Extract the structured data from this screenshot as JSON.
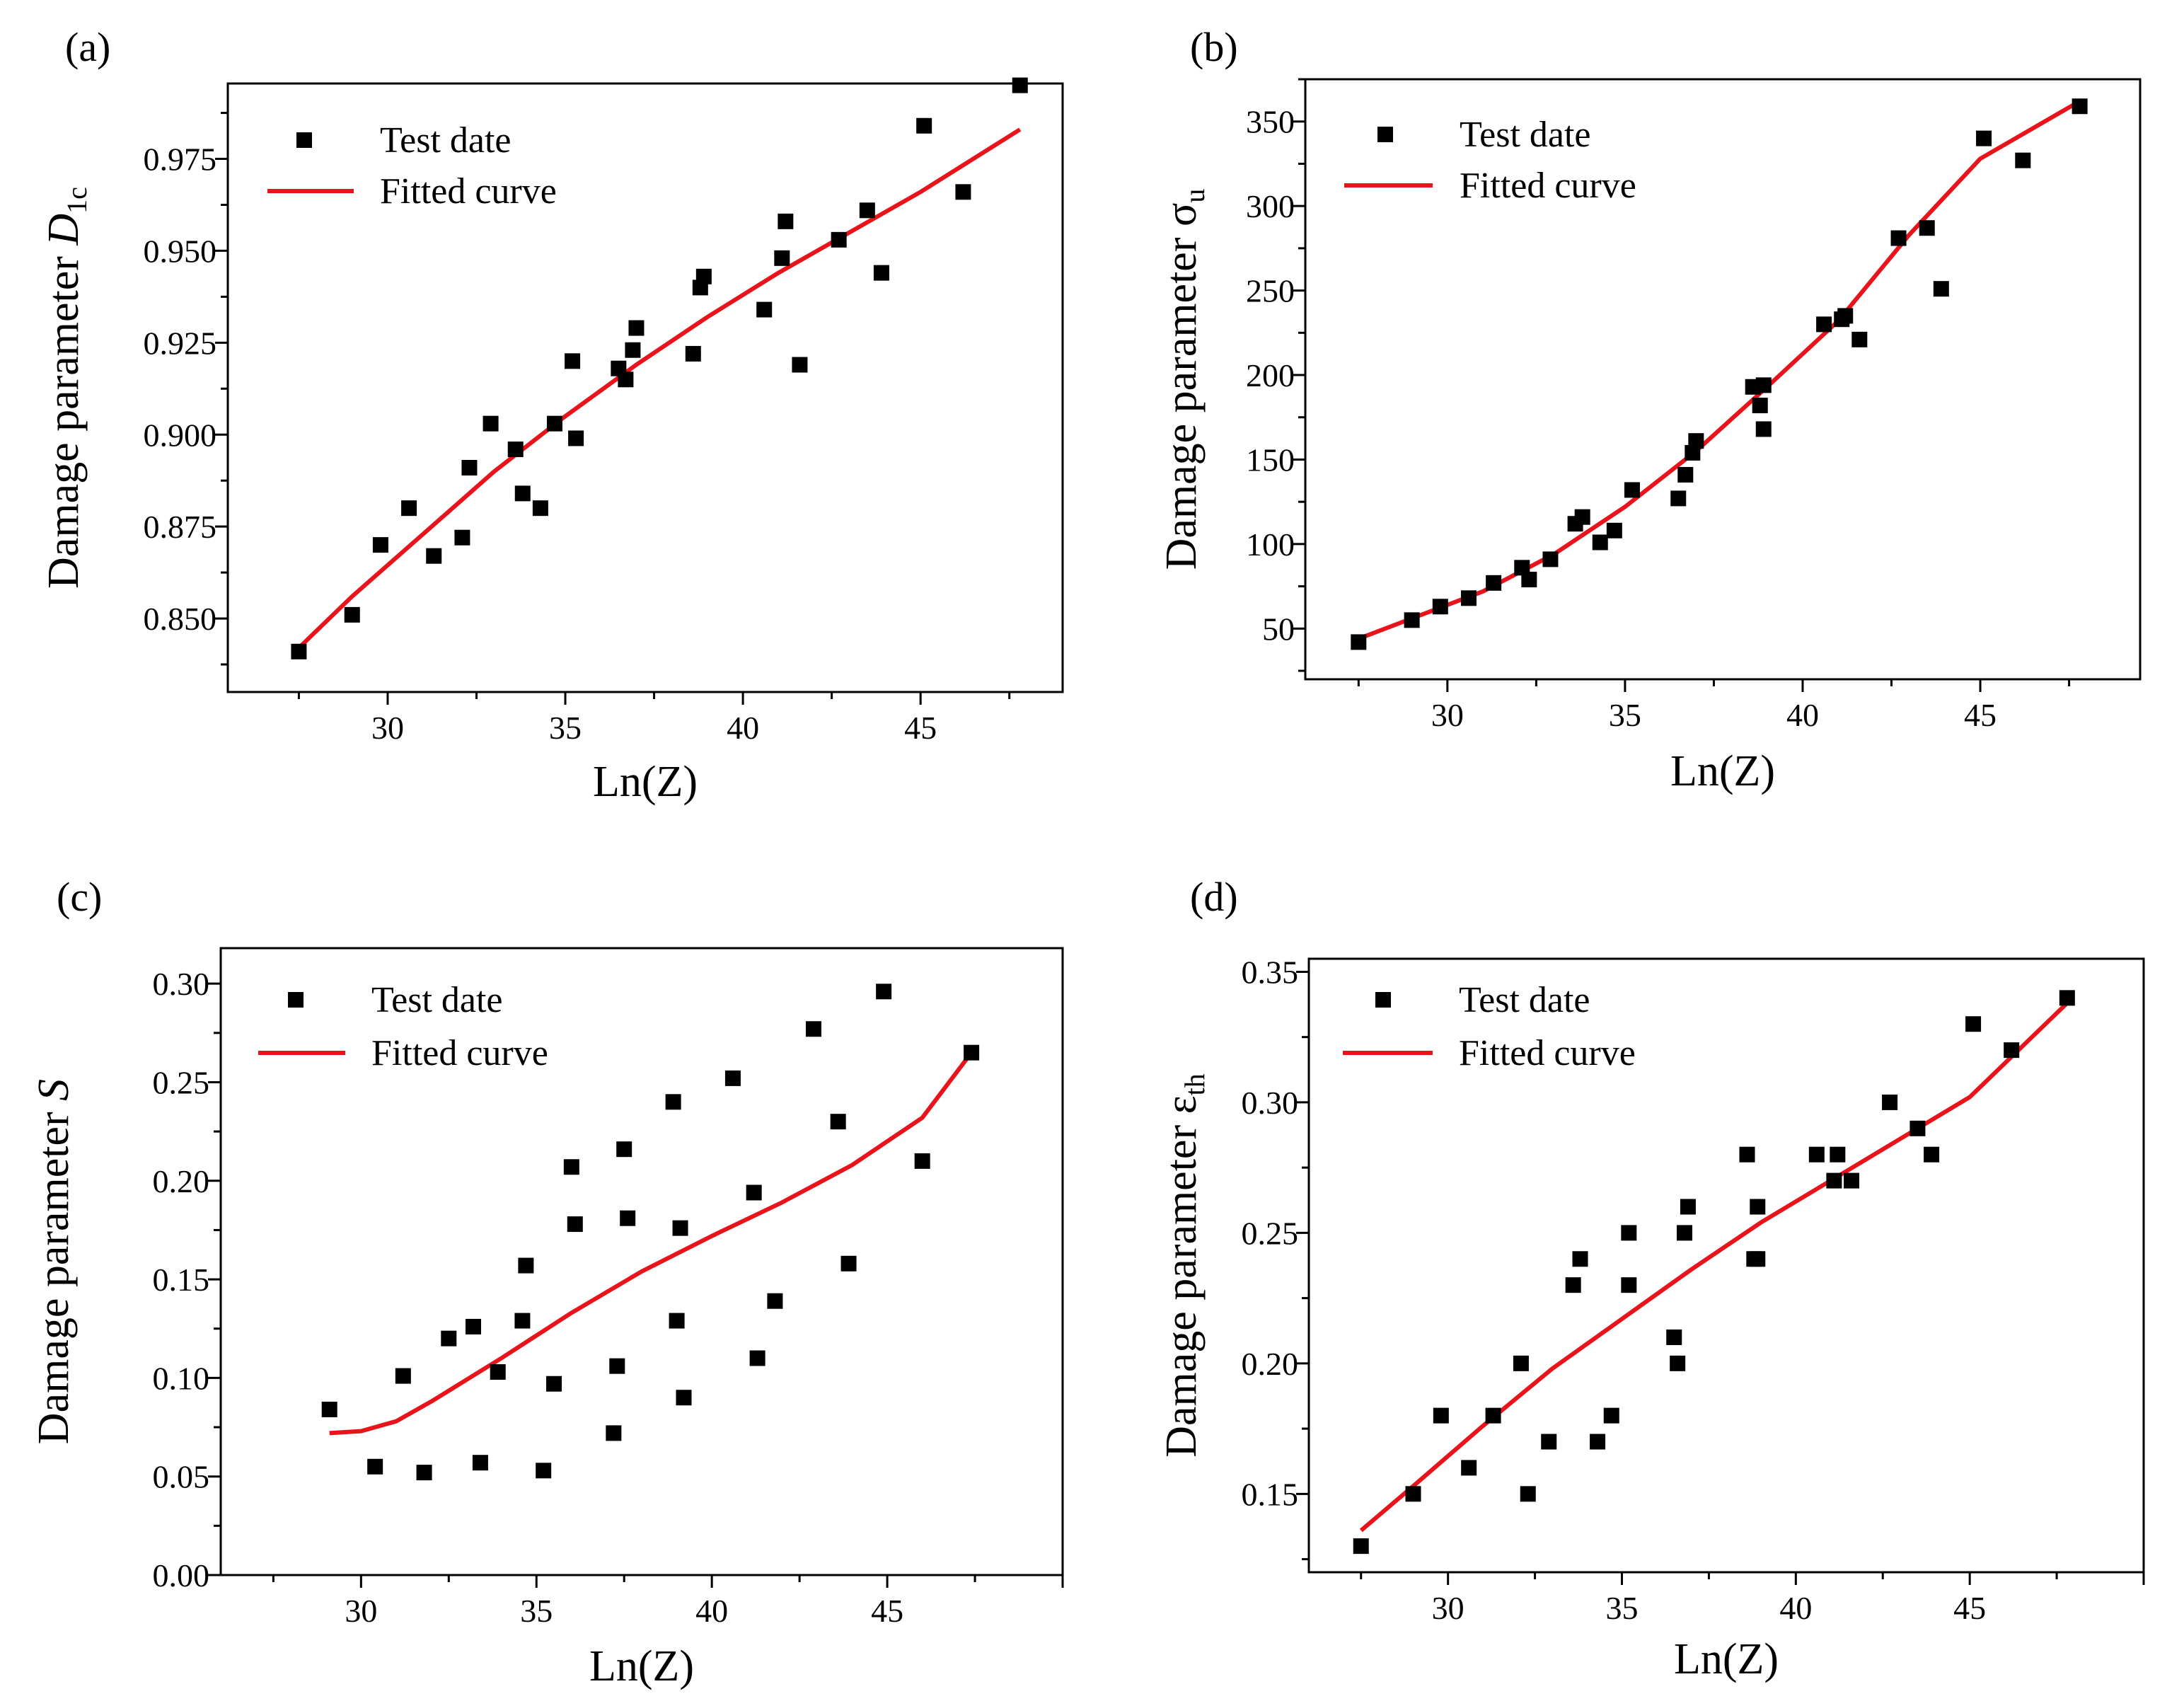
{
  "chart_data": [
    {
      "type": "scatter",
      "panel_label": "(a)",
      "xlabel": "Ln(Z)",
      "ylabel": "Damage parameter",
      "ysymbol_main": "D",
      "ysymbol_sub": "1c",
      "xlim": [
        25.5,
        49
      ],
      "ylim": [
        0.83,
        0.9955
      ],
      "xticks": [
        30,
        35,
        40,
        45
      ],
      "yticks": [
        0.85,
        0.875,
        0.9,
        0.925,
        0.95,
        0.975
      ],
      "ytick_labels": [
        "0.850",
        "0.875",
        "0.900",
        "0.925",
        "0.950",
        "0.975"
      ],
      "series": [
        {
          "name": "Test date",
          "x": [
            27.5,
            29.0,
            29.8,
            30.6,
            31.3,
            32.1,
            32.3,
            32.9,
            33.6,
            33.8,
            34.3,
            34.7,
            35.2,
            35.3,
            36.5,
            36.7,
            36.9,
            37.0,
            38.6,
            38.8,
            38.9,
            40.6,
            41.1,
            41.2,
            41.6,
            42.7,
            43.5,
            43.9,
            45.1,
            46.2,
            47.8
          ],
          "y": [
            0.841,
            0.851,
            0.87,
            0.88,
            0.867,
            0.872,
            0.891,
            0.903,
            0.896,
            0.884,
            0.88,
            0.903,
            0.92,
            0.899,
            0.918,
            0.915,
            0.923,
            0.929,
            0.922,
            0.94,
            0.943,
            0.934,
            0.948,
            0.958,
            0.919,
            0.953,
            0.961,
            0.944,
            0.984,
            0.966,
            0.995
          ]
        },
        {
          "name": "Fitted curve",
          "x": [
            27.5,
            29,
            31,
            33,
            35,
            37,
            39,
            41,
            43,
            45,
            47.8
          ],
          "y": [
            0.842,
            0.856,
            0.873,
            0.89,
            0.905,
            0.919,
            0.932,
            0.944,
            0.955,
            0.966,
            0.983
          ]
        }
      ]
    },
    {
      "type": "scatter",
      "panel_label": "(b)",
      "xlabel": "Ln(Z)",
      "ylabel": "Damage parameter",
      "ysymbol_main": "σ",
      "ysymbol_sub": "u",
      "xlim": [
        26,
        49.5
      ],
      "ylim": [
        20,
        375
      ],
      "xticks": [
        30,
        35,
        40,
        45
      ],
      "yticks": [
        50,
        100,
        150,
        200,
        250,
        300,
        350
      ],
      "ytick_labels": [
        "50",
        "100",
        "150",
        "200",
        "250",
        "300",
        "350"
      ],
      "series": [
        {
          "name": "Test date",
          "x": [
            27.5,
            29.0,
            29.8,
            30.6,
            31.3,
            32.1,
            32.3,
            32.9,
            33.6,
            33.8,
            34.3,
            34.7,
            35.2,
            36.5,
            36.7,
            36.9,
            37.0,
            38.6,
            38.8,
            38.9,
            38.9,
            40.6,
            41.1,
            41.2,
            41.6,
            42.7,
            43.5,
            43.9,
            45.1,
            46.2,
            47.8
          ],
          "y": [
            42,
            55,
            63,
            68,
            77,
            86,
            79,
            91,
            112,
            116,
            101,
            108,
            132,
            127,
            141,
            154,
            161,
            193,
            182,
            168,
            194,
            230,
            233,
            235,
            221,
            281,
            287,
            251,
            340,
            327,
            359
          ]
        },
        {
          "name": "Fitted curve",
          "x": [
            27.5,
            29,
            31,
            33,
            35,
            37,
            39,
            41,
            43,
            45,
            47.8
          ],
          "y": [
            44,
            56,
            72,
            94,
            122,
            155,
            193,
            232,
            283,
            328,
            362
          ]
        }
      ]
    },
    {
      "type": "scatter",
      "panel_label": "(c)",
      "xlabel": "Ln(Z)",
      "ylabel": "Damage parameter",
      "ysymbol_main": "S",
      "ysymbol_sub": "",
      "xlim": [
        26,
        50
      ],
      "ylim": [
        0.0,
        0.318
      ],
      "xticks": [
        30,
        35,
        40,
        45
      ],
      "yticks": [
        0.0,
        0.05,
        0.1,
        0.15,
        0.2,
        0.25,
        0.3
      ],
      "ytick_labels": [
        "0.00",
        "0.05",
        "0.10",
        "0.15",
        "0.20",
        "0.25",
        "0.30"
      ],
      "series": [
        {
          "name": "Test date",
          "x": [
            29.1,
            30.4,
            31.2,
            31.8,
            32.5,
            33.2,
            33.4,
            33.9,
            34.6,
            34.7,
            35.2,
            35.5,
            36.0,
            36.1,
            37.2,
            37.3,
            37.5,
            37.6,
            38.9,
            39.0,
            39.1,
            39.2,
            40.6,
            41.2,
            41.3,
            41.8,
            42.9,
            43.6,
            43.9,
            44.9,
            46.0,
            47.4
          ],
          "y": [
            0.084,
            0.055,
            0.101,
            0.052,
            0.12,
            0.126,
            0.057,
            0.103,
            0.129,
            0.157,
            0.053,
            0.097,
            0.207,
            0.178,
            0.072,
            0.106,
            0.216,
            0.181,
            0.24,
            0.129,
            0.176,
            0.09,
            0.252,
            0.194,
            0.11,
            0.139,
            0.277,
            0.23,
            0.158,
            0.296,
            0.21,
            0.265
          ]
        },
        {
          "name": "Fitted curve",
          "x": [
            29.1,
            30,
            31,
            32,
            34,
            36,
            38,
            40,
            42,
            44,
            46,
            47.4
          ],
          "y": [
            0.072,
            0.073,
            0.078,
            0.088,
            0.11,
            0.133,
            0.154,
            0.172,
            0.189,
            0.208,
            0.232,
            0.265
          ]
        }
      ]
    },
    {
      "type": "scatter",
      "panel_label": "(d)",
      "xlabel": "Ln(Z)",
      "ylabel": "Damage parameter",
      "ysymbol_main": "ε",
      "ysymbol_sub": "th",
      "xlim": [
        26,
        50
      ],
      "ylim": [
        0.12,
        0.355
      ],
      "xticks": [
        30,
        35,
        40,
        45
      ],
      "yticks": [
        0.15,
        0.2,
        0.25,
        0.3,
        0.35
      ],
      "ytick_labels": [
        "0.15",
        "0.20",
        "0.25",
        "0.30",
        "0.35"
      ],
      "series": [
        {
          "name": "Test date",
          "x": [
            27.5,
            29.0,
            29.8,
            30.6,
            31.3,
            32.1,
            32.3,
            32.9,
            33.6,
            33.8,
            34.3,
            34.7,
            35.2,
            35.2,
            36.5,
            36.6,
            36.8,
            36.9,
            38.6,
            38.8,
            38.9,
            38.9,
            40.6,
            41.1,
            41.2,
            41.6,
            42.7,
            43.5,
            43.9,
            45.1,
            46.2,
            47.8
          ],
          "y": [
            0.13,
            0.15,
            0.18,
            0.16,
            0.18,
            0.2,
            0.15,
            0.17,
            0.23,
            0.24,
            0.17,
            0.18,
            0.25,
            0.23,
            0.21,
            0.2,
            0.25,
            0.26,
            0.28,
            0.24,
            0.24,
            0.26,
            0.28,
            0.27,
            0.28,
            0.27,
            0.3,
            0.29,
            0.28,
            0.33,
            0.32,
            0.34
          ]
        },
        {
          "name": "Fitted curve",
          "x": [
            27.5,
            29,
            31,
            33,
            35,
            37,
            39,
            41,
            43,
            45,
            47.8
          ],
          "y": [
            0.136,
            0.153,
            0.176,
            0.198,
            0.217,
            0.236,
            0.254,
            0.27,
            0.286,
            0.302,
            0.338
          ]
        }
      ]
    }
  ]
}
